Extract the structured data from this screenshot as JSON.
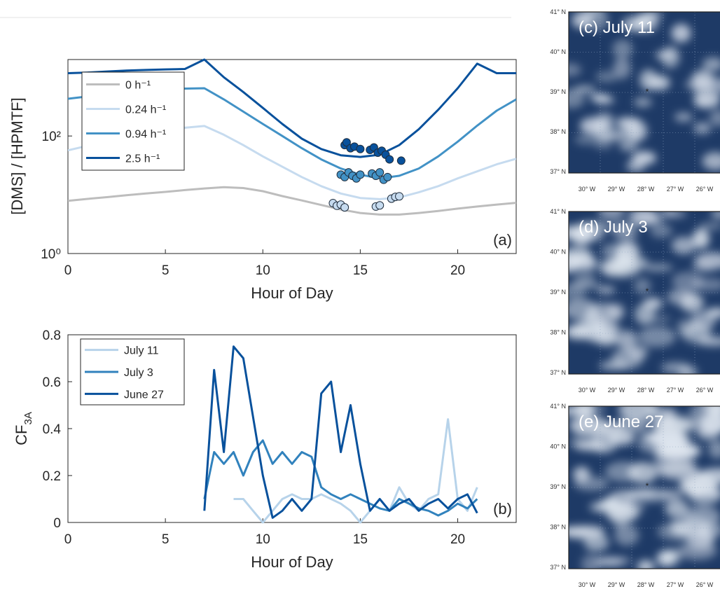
{
  "chart_data": [
    {
      "type": "line",
      "yscale": "log",
      "xlabel": "Hour of Day",
      "ylabel": "[DMS] / [HPMTF]",
      "annotation": "(a)",
      "legend": "upper left",
      "xlim": [
        0,
        23
      ],
      "xticks": [
        0,
        5,
        10,
        15,
        20
      ],
      "ylim": [
        1,
        2000
      ],
      "yticks": [
        {
          "value": 1,
          "label": "10⁰"
        },
        {
          "value": 100,
          "label": "10²"
        }
      ],
      "x": [
        0,
        1,
        2,
        3,
        4,
        5,
        6,
        7,
        8,
        9,
        10,
        11,
        12,
        13,
        14,
        15,
        16,
        17,
        18,
        19,
        20,
        21,
        22,
        23
      ],
      "series": [
        {
          "name": "0 h⁻¹",
          "color": "#bdbdbd",
          "values": [
            7.9,
            8.5,
            9.1,
            9.8,
            10.5,
            11.2,
            12,
            12.8,
            13.5,
            13,
            11.5,
            9.5,
            8,
            6.7,
            5.6,
            4.9,
            4.6,
            4.6,
            4.9,
            5.3,
            5.8,
            6.3,
            6.8,
            7.3
          ]
        },
        {
          "name": "0.24 h⁻¹",
          "color": "#c6dbef",
          "values": [
            57,
            68,
            80,
            95,
            110,
            125,
            138,
            148,
            105,
            70,
            45,
            30,
            20,
            14,
            10.5,
            8.8,
            8.4,
            9,
            11,
            14,
            19,
            25,
            33,
            41
          ]
        },
        {
          "name": "0.94 h⁻¹",
          "color": "#4292c6",
          "values": [
            430,
            470,
            510,
            550,
            590,
            620,
            640,
            650,
            420,
            260,
            160,
            100,
            62,
            40,
            28,
            22,
            19,
            21,
            28,
            45,
            80,
            150,
            270,
            420
          ]
        },
        {
          "name": "2.5 h⁻¹",
          "color": "#08519c",
          "values": [
            1170,
            1200,
            1250,
            1300,
            1330,
            1360,
            1380,
            2000,
            1000,
            560,
            300,
            160,
            90,
            60,
            47,
            44,
            48,
            70,
            130,
            280,
            650,
            1700,
            1170,
            1170
          ]
        }
      ],
      "points": [
        {
          "color": "#c6dbef",
          "x": [
            13.6,
            13.8,
            14.0,
            14.2,
            15.8,
            16.0,
            16.6,
            16.8,
            17.0
          ],
          "y": [
            7.2,
            6.5,
            6.8,
            6.1,
            6.3,
            6.6,
            8.6,
            9.2,
            9.4
          ]
        },
        {
          "color": "#4292c6",
          "x": [
            14.0,
            14.2,
            14.4,
            14.6,
            14.8,
            15.0,
            15.6,
            15.8,
            16.0,
            16.2,
            16.4
          ],
          "y": [
            22,
            20,
            24,
            21,
            19,
            22,
            23,
            21,
            24,
            18,
            20
          ]
        },
        {
          "color": "#08519c",
          "x": [
            14.2,
            14.3,
            14.5,
            14.7,
            15.0,
            15.5,
            15.7,
            15.9,
            16.1,
            16.3,
            16.5,
            17.1
          ],
          "y": [
            70,
            78,
            62,
            66,
            60,
            58,
            64,
            52,
            56,
            48,
            40,
            38
          ]
        }
      ]
    },
    {
      "type": "line",
      "xlabel": "Hour of Day",
      "ylabel": {
        "text": "CF",
        "subscript": "3A"
      },
      "annotation": "(b)",
      "legend": "upper left",
      "xlim": [
        0,
        23
      ],
      "xticks": [
        0,
        5,
        10,
        15,
        20
      ],
      "ylim": [
        0,
        0.8
      ],
      "yticks": [
        0,
        0.2,
        0.4,
        0.6,
        0.8
      ],
      "x": [
        7,
        7.5,
        8,
        8.5,
        9,
        9.5,
        10,
        10.5,
        11,
        11.5,
        12,
        12.5,
        13,
        13.5,
        14,
        14.5,
        15,
        15.5,
        16,
        16.5,
        17,
        17.5,
        18,
        18.5,
        19,
        19.5,
        20,
        20.5,
        21
      ],
      "series": [
        {
          "name": "July 11",
          "color": "#b7d3ea",
          "values": [
            null,
            null,
            null,
            0.1,
            0.1,
            0.05,
            0.0,
            0.05,
            0.1,
            0.12,
            0.1,
            0.1,
            0.12,
            0.1,
            0.08,
            0.05,
            0.0,
            0.05,
            0.1,
            0.05,
            0.15,
            0.08,
            0.05,
            0.1,
            0.12,
            0.44,
            0.1,
            0.05,
            0.15
          ]
        },
        {
          "name": "July 3",
          "color": "#3182bd",
          "values": [
            0.1,
            0.3,
            0.25,
            0.3,
            0.2,
            0.3,
            0.35,
            0.25,
            0.3,
            0.25,
            0.3,
            0.28,
            0.15,
            0.12,
            0.1,
            0.12,
            0.1,
            0.08,
            0.06,
            0.05,
            0.1,
            0.08,
            0.06,
            0.05,
            0.03,
            0.05,
            0.08,
            0.06,
            0.1
          ]
        },
        {
          "name": "June 27",
          "color": "#08519c",
          "values": [
            0.05,
            0.65,
            0.3,
            0.75,
            0.7,
            0.45,
            0.2,
            0.02,
            0.05,
            0.1,
            0.05,
            0.1,
            0.55,
            0.6,
            0.3,
            0.5,
            0.25,
            0.05,
            0.1,
            0.05,
            0.08,
            0.1,
            0.05,
            0.08,
            0.1,
            0.06,
            0.1,
            0.12,
            0.04
          ]
        }
      ]
    }
  ],
  "maps": [
    {
      "title": "(c) July 11",
      "lat_labels": [
        "41° N",
        "40° N",
        "39° N",
        "38° N",
        "37° N"
      ],
      "lon_labels": [
        "30° W",
        "29° W",
        "28° W",
        "27° W",
        "26° W"
      ]
    },
    {
      "title": "(d) July 3",
      "lat_labels": [
        "41° N",
        "40° N",
        "39° N",
        "38° N",
        "37° N"
      ],
      "lon_labels": [
        "30° W",
        "29° W",
        "28° W",
        "27° W",
        "26° W"
      ]
    },
    {
      "title": "(e) June 27",
      "lat_labels": [
        "41° N",
        "40° N",
        "39° N",
        "38° N",
        "37° N"
      ],
      "lon_labels": [
        "30° W",
        "29° W",
        "28° W",
        "27° W",
        "26° W"
      ]
    }
  ]
}
